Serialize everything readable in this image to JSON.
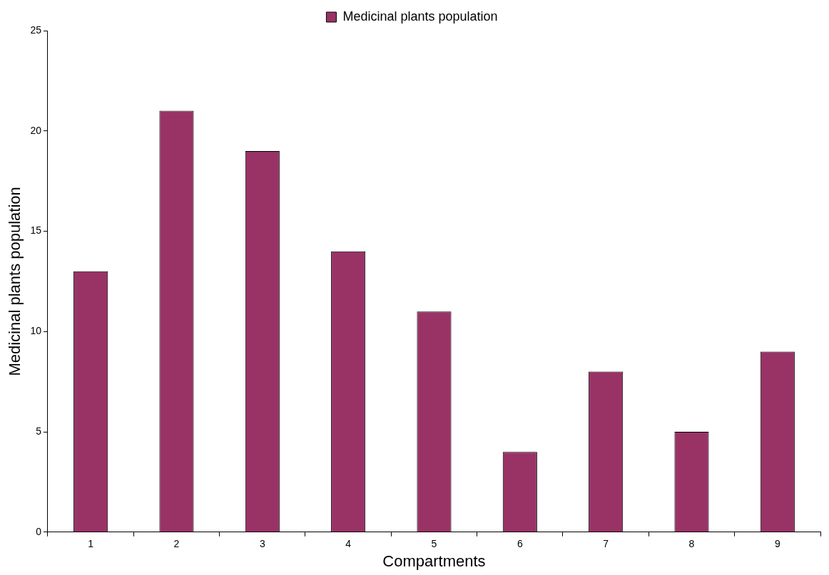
{
  "chart_data": {
    "type": "bar",
    "xlabel": "Compartments",
    "ylabel": "Medicinal plants population",
    "categories": [
      "1",
      "2",
      "3",
      "4",
      "5",
      "6",
      "7",
      "8",
      "9"
    ],
    "series": [
      {
        "name": "Medicinal plants population",
        "color": "#993366",
        "values": [
          13,
          21,
          19,
          14,
          11,
          4,
          8,
          5,
          9
        ]
      }
    ],
    "ylim": [
      0,
      25
    ],
    "yticks": [
      0,
      5,
      10,
      15,
      20,
      25
    ],
    "grid": false,
    "legend": "top"
  }
}
